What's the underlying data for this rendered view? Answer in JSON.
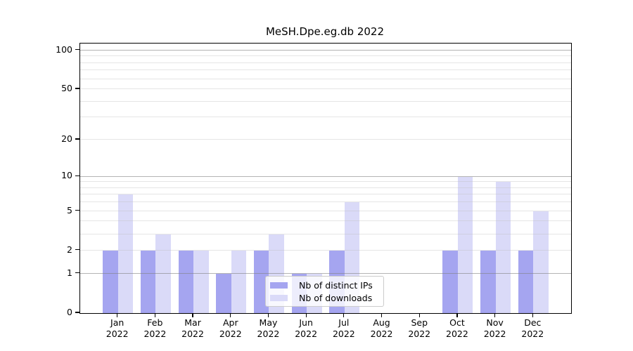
{
  "title": "MeSH.Dpe.eg.db 2022",
  "chart_data": {
    "type": "bar",
    "title": "MeSH.Dpe.eg.db 2022",
    "categories": [
      "Jan 2022",
      "Feb 2022",
      "Mar 2022",
      "Apr 2022",
      "May 2022",
      "Jun 2022",
      "Jul 2022",
      "Aug 2022",
      "Sep 2022",
      "Oct 2022",
      "Nov 2022",
      "Dec 2022"
    ],
    "series": [
      {
        "name": "Nb of distinct IPs",
        "color": "#a5a5f0",
        "values": [
          2,
          2,
          2,
          1,
          2,
          1,
          2,
          0,
          0,
          2,
          2,
          2
        ]
      },
      {
        "name": "Nb of downloads",
        "color": "#dadaf8",
        "values": [
          7,
          3,
          2,
          2,
          3,
          1,
          6,
          0,
          0,
          10,
          9,
          5
        ]
      }
    ],
    "xlabel": "",
    "ylabel": "",
    "y_scale": "log1p",
    "ylim": [
      0,
      112
    ],
    "y_ticks": [
      0,
      1,
      2,
      5,
      10,
      20,
      50,
      100
    ],
    "y_major_gridlines": [
      1,
      10,
      100
    ],
    "y_minor_gridlines": [
      2,
      3,
      4,
      5,
      6,
      7,
      8,
      9,
      20,
      30,
      40,
      50,
      60,
      70,
      80,
      90
    ],
    "grid": true,
    "legend_position": "lower center",
    "axis_color": "#000000",
    "background_color": "#ffffff"
  }
}
